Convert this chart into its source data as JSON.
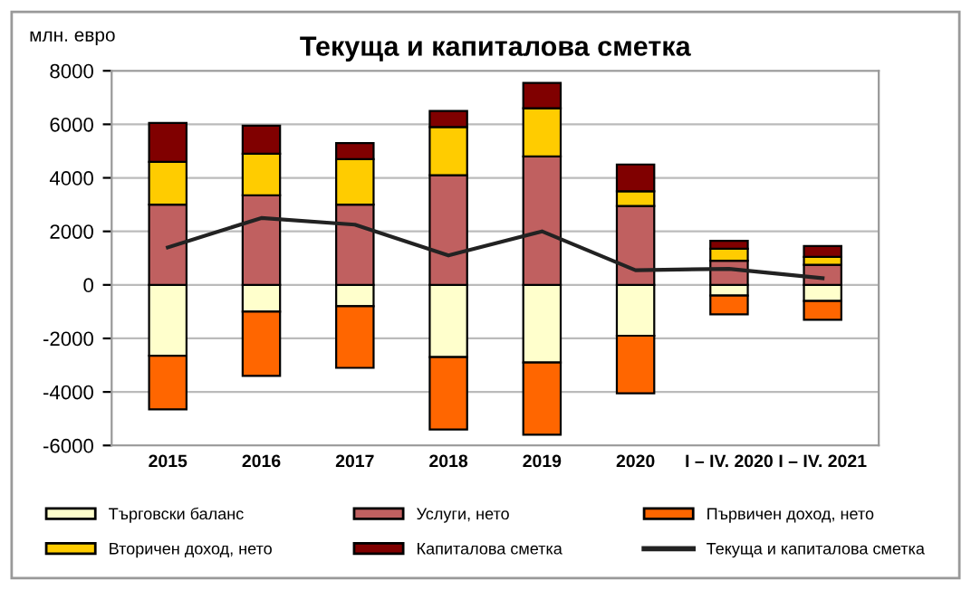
{
  "chart_data": {
    "type": "bar",
    "stacked": true,
    "title": "Текуща и капиталова сметка",
    "ylabel": "млн. евро",
    "categories": [
      "2015",
      "2016",
      "2017",
      "2018",
      "2019",
      "2020",
      "I – IV. 2020",
      "I – IV. 2021"
    ],
    "series": [
      {
        "name": "Търговски баланс",
        "color": "#ffffcc",
        "values": [
          -2650,
          -1000,
          -800,
          -2700,
          -2900,
          -1900,
          -400,
          -600
        ]
      },
      {
        "name": "Услуги, нето",
        "color": "#c06060",
        "values": [
          3000,
          3350,
          3000,
          4100,
          4800,
          2950,
          900,
          750
        ]
      },
      {
        "name": "Първичен доход, нето",
        "color": "#ff6600",
        "values": [
          -2000,
          -2400,
          -2300,
          -2700,
          -2700,
          -2150,
          -700,
          -700
        ]
      },
      {
        "name": "Вторичен доход, нето",
        "color": "#ffcc00",
        "values": [
          1600,
          1550,
          1700,
          1800,
          1800,
          550,
          450,
          300
        ]
      },
      {
        "name": "Капиталова сметка",
        "color": "#800000",
        "values": [
          1450,
          1050,
          600,
          600,
          950,
          1000,
          300,
          400
        ]
      },
      {
        "name": "Текуща и капиталова сметка",
        "type": "line",
        "color": "#222222",
        "values": [
          1400,
          2500,
          2250,
          1100,
          2000,
          550,
          600,
          250
        ]
      }
    ],
    "ylim": [
      -6000,
      8000
    ],
    "yticks": [
      -6000,
      -4000,
      -2000,
      0,
      2000,
      4000,
      6000,
      8000
    ],
    "grid": "y",
    "legend": "bottom",
    "marker": "none",
    "line_style": "solid"
  }
}
